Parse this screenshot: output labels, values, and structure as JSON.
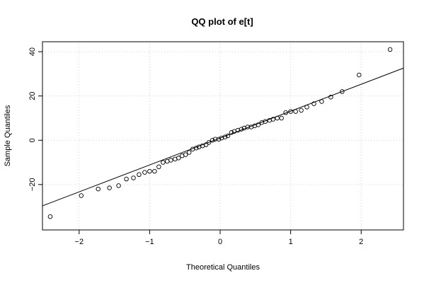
{
  "chart_data": {
    "type": "scatter",
    "title": "QQ plot of e[t]",
    "xlabel": "Theoretical Quantiles",
    "ylabel": "Sample Quantiles",
    "xlim": [
      -2.52,
      2.6
    ],
    "ylim": [
      -40.5,
      44.5
    ],
    "xticks": [
      -2,
      -1,
      0,
      1,
      2
    ],
    "xtick_labels": [
      "−2",
      "−1",
      "0",
      "1",
      "2"
    ],
    "yticks": [
      -20,
      0,
      20,
      40
    ],
    "ytick_labels": [
      "−20",
      "0",
      "20",
      "40"
    ],
    "grid": true,
    "legend": "none",
    "reference_line": {
      "intercept": 1.0,
      "slope": 12.15
    },
    "x": [
      -2.41,
      -1.97,
      -1.73,
      -1.57,
      -1.44,
      -1.33,
      -1.23,
      -1.15,
      -1.07,
      -1.0,
      -0.93,
      -0.87,
      -0.81,
      -0.75,
      -0.7,
      -0.64,
      -0.59,
      -0.54,
      -0.49,
      -0.44,
      -0.39,
      -0.34,
      -0.3,
      -0.25,
      -0.2,
      -0.16,
      -0.11,
      -0.07,
      -0.02,
      0.02,
      0.07,
      0.11,
      0.16,
      0.2,
      0.25,
      0.3,
      0.34,
      0.39,
      0.44,
      0.49,
      0.54,
      0.59,
      0.64,
      0.7,
      0.75,
      0.81,
      0.87,
      0.93,
      1.0,
      1.07,
      1.15,
      1.23,
      1.33,
      1.44,
      1.57,
      1.73,
      1.97,
      2.41
    ],
    "y": [
      -34.5,
      -25.0,
      -22.0,
      -21.5,
      -20.5,
      -17.5,
      -17.0,
      -15.5,
      -14.5,
      -14.0,
      -14.0,
      -12.0,
      -10.0,
      -9.5,
      -9.0,
      -8.5,
      -8.0,
      -7.0,
      -6.5,
      -5.5,
      -4.0,
      -3.5,
      -3.0,
      -2.5,
      -2.0,
      -1.0,
      0.0,
      0.5,
      0.5,
      1.0,
      1.5,
      2.0,
      3.5,
      4.0,
      4.5,
      5.0,
      5.5,
      6.0,
      6.0,
      6.5,
      7.0,
      8.0,
      8.5,
      9.0,
      9.5,
      10.0,
      10.0,
      12.5,
      13.0,
      13.0,
      13.5,
      15.0,
      16.5,
      17.5,
      19.5,
      22.0,
      29.5,
      41.0
    ],
    "colors": {
      "points": "#000000",
      "line": "#000000",
      "grid": "#d3d3d3",
      "background": "#ffffff"
    }
  }
}
